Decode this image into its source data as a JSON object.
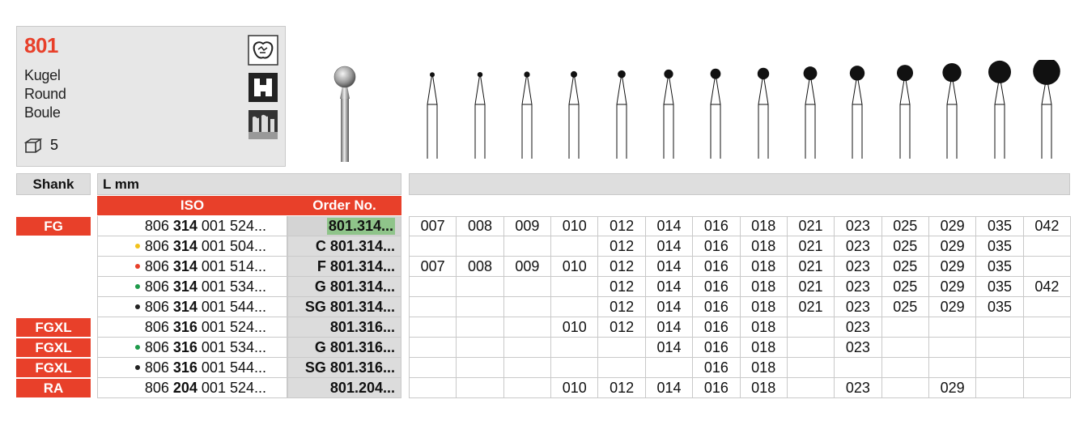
{
  "product": {
    "number": "801",
    "names": [
      "Kugel",
      "Round",
      "Boule"
    ],
    "pack_icon": "box-icon",
    "pack_qty": "5"
  },
  "icons": [
    "tooth-crown-icon",
    "tooth-cavity-icon",
    "root-canal-icon"
  ],
  "table": {
    "shank_header": "Shank",
    "lmm_header": "L mm",
    "iso_header": "ISO",
    "order_header": "Order No.",
    "rows": [
      {
        "shank": "FG",
        "dot": "",
        "iso_pre": "806 ",
        "iso_bold": "314",
        "iso_post": " 001 524...",
        "order": "801.314...",
        "highlight": true,
        "sizes": [
          "007",
          "008",
          "009",
          "010",
          "012",
          "014",
          "016",
          "018",
          "021",
          "023",
          "025",
          "029",
          "035",
          "042"
        ]
      },
      {
        "shank": "",
        "dot": "#f2c21b",
        "iso_pre": "806 ",
        "iso_bold": "314",
        "iso_post": " 001 504...",
        "order": "C 801.314...",
        "highlight": false,
        "sizes": [
          "",
          "",
          "",
          "",
          "012",
          "014",
          "016",
          "018",
          "021",
          "023",
          "025",
          "029",
          "035",
          ""
        ]
      },
      {
        "shank": "",
        "dot": "#e8402a",
        "iso_pre": "806 ",
        "iso_bold": "314",
        "iso_post": " 001 514...",
        "order": "F 801.314...",
        "highlight": false,
        "sizes": [
          "007",
          "008",
          "009",
          "010",
          "012",
          "014",
          "016",
          "018",
          "021",
          "023",
          "025",
          "029",
          "035",
          ""
        ]
      },
      {
        "shank": "",
        "dot": "#1e9a4a",
        "iso_pre": "806 ",
        "iso_bold": "314",
        "iso_post": " 001 534...",
        "order": "G 801.314...",
        "highlight": false,
        "sizes": [
          "",
          "",
          "",
          "",
          "012",
          "014",
          "016",
          "018",
          "021",
          "023",
          "025",
          "029",
          "035",
          "042"
        ]
      },
      {
        "shank": "",
        "dot": "#222222",
        "iso_pre": "806 ",
        "iso_bold": "314",
        "iso_post": " 001 544...",
        "order": "SG 801.314...",
        "highlight": false,
        "sizes": [
          "",
          "",
          "",
          "",
          "012",
          "014",
          "016",
          "018",
          "021",
          "023",
          "025",
          "029",
          "035",
          ""
        ]
      },
      {
        "shank": "FGXL",
        "dot": "",
        "iso_pre": "806 ",
        "iso_bold": "316",
        "iso_post": " 001 524...",
        "order": "801.316...",
        "highlight": false,
        "sizes": [
          "",
          "",
          "",
          "010",
          "012",
          "014",
          "016",
          "018",
          "",
          "023",
          "",
          "",
          "",
          ""
        ]
      },
      {
        "shank": "FGXL",
        "dot": "#1e9a4a",
        "iso_pre": "806 ",
        "iso_bold": "316",
        "iso_post": " 001 534...",
        "order": "G 801.316...",
        "highlight": false,
        "sizes": [
          "",
          "",
          "",
          "",
          "",
          "014",
          "016",
          "018",
          "",
          "023",
          "",
          "",
          "",
          ""
        ]
      },
      {
        "shank": "FGXL",
        "dot": "#222222",
        "iso_pre": "806 ",
        "iso_bold": "316",
        "iso_post": " 001 544...",
        "order": "SG 801.316...",
        "highlight": false,
        "sizes": [
          "",
          "",
          "",
          "",
          "",
          "",
          "016",
          "018",
          "",
          "",
          "",
          "",
          "",
          ""
        ]
      },
      {
        "shank": "RA",
        "dot": "",
        "iso_pre": "806 ",
        "iso_bold": "204",
        "iso_post": " 001 524...",
        "order": "801.204...",
        "highlight": false,
        "sizes": [
          "",
          "",
          "",
          "010",
          "012",
          "014",
          "016",
          "018",
          "",
          "023",
          "",
          "029",
          "",
          ""
        ]
      }
    ]
  },
  "colors": {
    "accent": "#e8402a",
    "header_gray": "#dedede",
    "highlight_green": "#8fc48a"
  }
}
